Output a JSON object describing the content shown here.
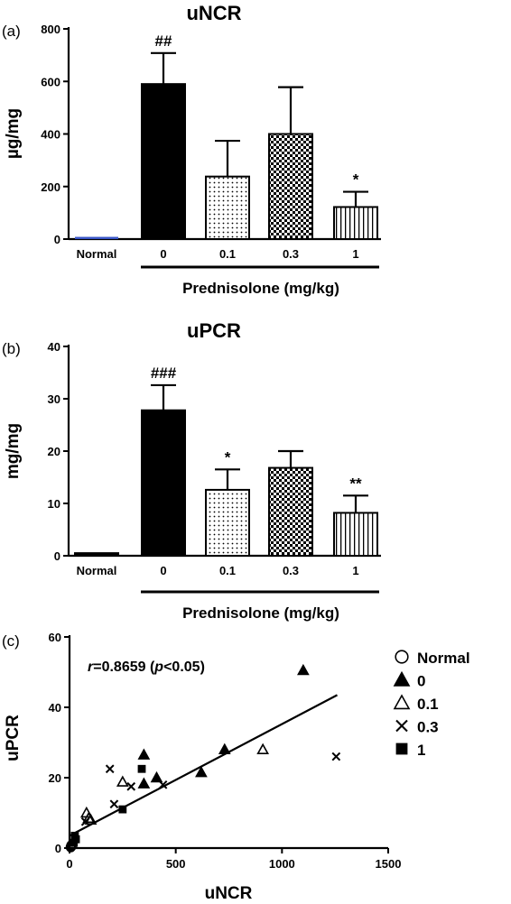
{
  "chart_data": [
    {
      "panel_label": "(a)",
      "type": "bar",
      "title": "uNCR",
      "ylabel": "µg/mg",
      "ylim": [
        0,
        800
      ],
      "yticks": [
        "0",
        "200",
        "400",
        "600",
        "800"
      ],
      "categories": [
        "Normal",
        "0",
        "0.1",
        "0.3",
        "1"
      ],
      "values": [
        5,
        590,
        238,
        400,
        122
      ],
      "errors": [
        0,
        118,
        136,
        178,
        58
      ],
      "patterns": [
        "blue-line",
        "solid",
        "dots",
        "checker",
        "vlines"
      ],
      "annotations": [
        "",
        "##",
        "",
        "",
        "*"
      ],
      "group_label": "Prednisolone (mg/kg)"
    },
    {
      "panel_label": "(b)",
      "type": "bar",
      "title": "uPCR",
      "ylabel": "mg/mg",
      "ylim": [
        0,
        40
      ],
      "yticks": [
        "0",
        "10",
        "20",
        "30",
        "40"
      ],
      "categories": [
        "Normal",
        "0",
        "0.1",
        "0.3",
        "1"
      ],
      "values": [
        0.5,
        27.8,
        12.6,
        16.8,
        8.2
      ],
      "errors": [
        0,
        4.8,
        3.9,
        3.2,
        3.3
      ],
      "patterns": [
        "solid",
        "solid",
        "dots",
        "checker",
        "vlines"
      ],
      "annotations": [
        "",
        "###",
        "*",
        "",
        "**"
      ],
      "group_label": "Prednisolone (mg/kg)"
    },
    {
      "panel_label": "(c)",
      "type": "scatter",
      "xlabel": "uNCR",
      "ylabel": "uPCR",
      "xlim": [
        0,
        1500
      ],
      "ylim": [
        0,
        60
      ],
      "xticks": [
        "0",
        "500",
        "1000",
        "1500"
      ],
      "yticks": [
        "0",
        "20",
        "40",
        "60"
      ],
      "correlation_label": {
        "r": "r",
        "value": "=0.8659 (",
        "p": "p",
        "p_value": "<0.05)"
      },
      "regression": {
        "x": [
          0,
          1260
        ],
        "y": [
          3.5,
          43.5
        ]
      },
      "legend": [
        {
          "name": "Normal",
          "marker": "circle-open"
        },
        {
          "name": "0",
          "marker": "triangle-filled"
        },
        {
          "name": "0.1",
          "marker": "triangle-open"
        },
        {
          "name": "0.3",
          "marker": "cross"
        },
        {
          "name": "1",
          "marker": "square-filled"
        }
      ],
      "series": [
        {
          "name": "Normal",
          "marker": "circle-open",
          "points": [
            [
              5,
              0.3
            ],
            [
              8,
              0.8
            ],
            [
              10,
              0.5
            ],
            [
              12,
              1.0
            ],
            [
              6,
              0.2
            ]
          ]
        },
        {
          "name": "0",
          "marker": "triangle-filled",
          "points": [
            [
              350,
              26.5
            ],
            [
              410,
              20
            ],
            [
              730,
              28
            ],
            [
              620,
              21.5
            ],
            [
              1100,
              50.5
            ],
            [
              350,
              18.3
            ]
          ]
        },
        {
          "name": "0.1",
          "marker": "triangle-open",
          "points": [
            [
              250,
              18.8
            ],
            [
              80,
              10
            ],
            [
              100,
              8
            ],
            [
              910,
              28
            ],
            [
              90,
              8.5
            ]
          ]
        },
        {
          "name": "0.3",
          "marker": "cross",
          "points": [
            [
              190,
              22.5
            ],
            [
              290,
              17.5
            ],
            [
              440,
              18
            ],
            [
              1255,
              26
            ],
            [
              210,
              12.5
            ],
            [
              75,
              7.5
            ]
          ]
        },
        {
          "name": "1",
          "marker": "square-filled",
          "points": [
            [
              340,
              22.5
            ],
            [
              250,
              11
            ],
            [
              30,
              2.5
            ],
            [
              25,
              3.5
            ],
            [
              20,
              1.5
            ]
          ]
        }
      ]
    }
  ],
  "colors": {
    "normal_bar_a": "#3a56c7",
    "ink": "#000000"
  }
}
